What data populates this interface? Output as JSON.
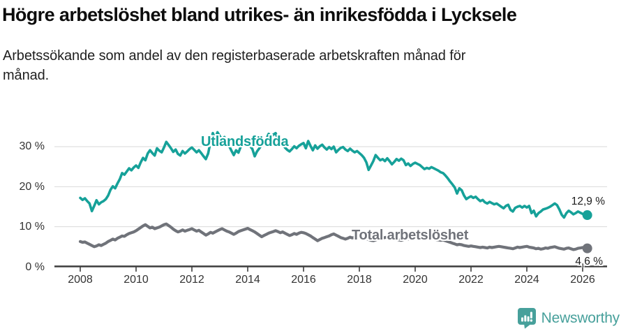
{
  "header": {
    "title": "Högre arbetslöshet bland utrikes- än inrikesfödda i Lycksele",
    "subtitle_line1": "Arbetssökande som andel av den registerbaserade arbetskraften månad för",
    "subtitle_line2": "månad."
  },
  "footer": {
    "brand": "Newsworthy",
    "brand_color": "#47A09B",
    "logo_icon": "newsworthy-speech-bubble-bar-chart-icon"
  },
  "colors": {
    "grid": "#DADADA",
    "axis": "#3D3D3D",
    "tick_text": "#333333"
  },
  "chart_data": {
    "type": "line",
    "title": "Högre arbetslöshet bland utrikes- än inrikesfödda i Lycksele",
    "subtitle": "Arbetssökande som andel av den registerbaserade arbetskraften månad för månad.",
    "x_start": "2008-01",
    "x_end": "2026-03",
    "points_per_year": 12,
    "grid": "horizontal",
    "legend_position": "inline-labels",
    "ylim": [
      0,
      38
    ],
    "x_tick_labels": [
      "2008",
      "2010",
      "2012",
      "2014",
      "2016",
      "2018",
      "2020",
      "2022",
      "2024",
      "2026"
    ],
    "x_tick_years": [
      2008,
      2010,
      2012,
      2014,
      2016,
      2018,
      2020,
      2022,
      2024,
      2026
    ],
    "y_ticks": [
      {
        "value": 0,
        "label": "0 %"
      },
      {
        "value": 10,
        "label": "10 %"
      },
      {
        "value": 20,
        "label": "20 %"
      },
      {
        "value": 30,
        "label": "30 %"
      }
    ],
    "series": [
      {
        "name": "Utlandsfödda",
        "color": "#16A199",
        "end_label": "12,9 %",
        "end_value": 12.9,
        "values": [
          17.2,
          16.7,
          17.1,
          16.4,
          15.8,
          13.9,
          15.2,
          16.6,
          15.6,
          16.1,
          16.4,
          16.9,
          17.8,
          19.2,
          20.1,
          19.6,
          20.8,
          21.9,
          23.4,
          23.0,
          23.8,
          24.6,
          24.1,
          24.8,
          25.3,
          24.7,
          26.1,
          27.2,
          26.6,
          28.3,
          29.1,
          28.4,
          27.8,
          29.6,
          29.0,
          28.6,
          29.8,
          31.2,
          30.4,
          29.6,
          28.7,
          29.3,
          28.2,
          27.8,
          28.9,
          28.3,
          28.8,
          29.4,
          29.8,
          29.2,
          28.6,
          29.1,
          28.4,
          27.6,
          26.9,
          28.3,
          31.2,
          33.4,
          32.0,
          33.6,
          32.6,
          31.8,
          32.4,
          31.4,
          30.2,
          29.0,
          27.9,
          29.1,
          28.5,
          30.0,
          30.8,
          31.4,
          31.0,
          30.2,
          29.4,
          27.6,
          28.8,
          29.6,
          30.4,
          31.0,
          31.9,
          33.2,
          32.4,
          33.0,
          33.4,
          31.9,
          30.7,
          30.9,
          29.8,
          29.2,
          28.8,
          29.4,
          30.1,
          29.6,
          30.2,
          30.6,
          30.9,
          29.6,
          31.4,
          30.2,
          29.1,
          30.3,
          29.5,
          30.1,
          30.5,
          29.8,
          29.3,
          29.9,
          29.4,
          30.0,
          28.6,
          29.2,
          29.7,
          29.9,
          29.3,
          28.9,
          29.5,
          29.0,
          28.6,
          28.9,
          28.4,
          27.9,
          27.2,
          26.1,
          24.2,
          25.3,
          26.4,
          27.9,
          27.2,
          26.6,
          26.9,
          26.4,
          27.1,
          26.4,
          25.6,
          26.2,
          26.9,
          26.5,
          27.0,
          26.6,
          25.4,
          25.8,
          25.2,
          25.7,
          26.0,
          25.7,
          25.4,
          24.9,
          24.4,
          24.7,
          24.5,
          24.9,
          24.6,
          24.3,
          24.0,
          23.6,
          23.4,
          22.8,
          22.1,
          21.3,
          20.6,
          19.8,
          18.3,
          19.6,
          19.1,
          17.8,
          16.9,
          17.3,
          17.6,
          17.2,
          17.5,
          16.9,
          16.4,
          16.7,
          16.1,
          15.8,
          16.2,
          15.9,
          15.6,
          15.8,
          15.4,
          15.0,
          14.6,
          15.2,
          15.5,
          14.2,
          13.8,
          14.7,
          15.0,
          15.2,
          14.8,
          15.2,
          14.8,
          15.2,
          13.4,
          14.0,
          12.6,
          13.4,
          13.8,
          14.3,
          14.5,
          14.7,
          15.0,
          15.4,
          15.8,
          15.4,
          14.3,
          13.0,
          12.3,
          13.4,
          14.0,
          13.6,
          13.1,
          13.4,
          13.8,
          13.5,
          13.2,
          12.7,
          12.9
        ]
      },
      {
        "name": "Total arbetslöshet",
        "color": "#70737A",
        "end_label": "4,6 %",
        "end_value": 4.6,
        "values": [
          6.3,
          6.1,
          6.2,
          5.9,
          5.6,
          5.3,
          5.0,
          5.2,
          5.5,
          5.3,
          5.6,
          5.9,
          6.3,
          6.6,
          6.9,
          6.7,
          7.1,
          7.4,
          7.7,
          7.6,
          8.0,
          8.3,
          8.5,
          8.7,
          9.0,
          9.4,
          9.8,
          10.2,
          10.5,
          10.1,
          9.7,
          9.9,
          9.5,
          9.7,
          9.9,
          10.2,
          10.5,
          10.7,
          10.3,
          9.9,
          9.4,
          9.0,
          8.7,
          8.9,
          9.2,
          8.9,
          9.1,
          9.3,
          9.5,
          9.2,
          8.9,
          9.1,
          8.7,
          8.3,
          7.9,
          8.2,
          8.6,
          8.4,
          8.7,
          9.0,
          9.3,
          9.5,
          9.2,
          8.9,
          8.7,
          8.4,
          8.1,
          8.4,
          8.8,
          9.0,
          9.2,
          9.4,
          9.6,
          9.3,
          9.0,
          8.7,
          8.3,
          7.9,
          7.5,
          7.8,
          8.1,
          8.4,
          8.6,
          8.8,
          9.0,
          8.8,
          8.5,
          8.7,
          8.4,
          8.1,
          7.8,
          8.0,
          8.3,
          8.1,
          8.4,
          8.6,
          8.5,
          8.3,
          8.0,
          7.7,
          7.3,
          6.9,
          6.5,
          6.8,
          7.1,
          7.3,
          7.5,
          7.7,
          8.0,
          8.2,
          7.9,
          7.6,
          7.3,
          7.1,
          6.9,
          7.1,
          7.4,
          7.2,
          7.4,
          7.6,
          7.7,
          7.5,
          7.2,
          7.0,
          6.8,
          6.6,
          6.5,
          6.7,
          6.9,
          7.0,
          7.2,
          7.3,
          7.4,
          7.2,
          7.0,
          7.1,
          6.9,
          6.7,
          6.6,
          6.8,
          7.0,
          6.9,
          7.1,
          7.2,
          7.3,
          7.1,
          7.4,
          7.7,
          7.5,
          7.3,
          7.1,
          7.2,
          7.0,
          6.8,
          6.7,
          6.6,
          6.7,
          6.5,
          6.3,
          6.1,
          5.9,
          5.7,
          5.5,
          5.6,
          5.5,
          5.3,
          5.2,
          5.1,
          5.2,
          5.1,
          5.0,
          4.9,
          4.8,
          4.9,
          4.8,
          4.7,
          4.9,
          4.8,
          4.9,
          5.0,
          5.1,
          5.0,
          4.9,
          4.8,
          4.7,
          4.6,
          4.5,
          4.7,
          4.9,
          4.8,
          4.9,
          5.0,
          5.1,
          4.9,
          4.8,
          4.7,
          4.5,
          4.6,
          4.4,
          4.5,
          4.7,
          4.6,
          4.8,
          4.9,
          5.0,
          4.8,
          4.6,
          4.5,
          4.4,
          4.6,
          4.7,
          4.5,
          4.3,
          4.4,
          4.6,
          4.7,
          4.8,
          4.7,
          4.6
        ]
      }
    ]
  }
}
